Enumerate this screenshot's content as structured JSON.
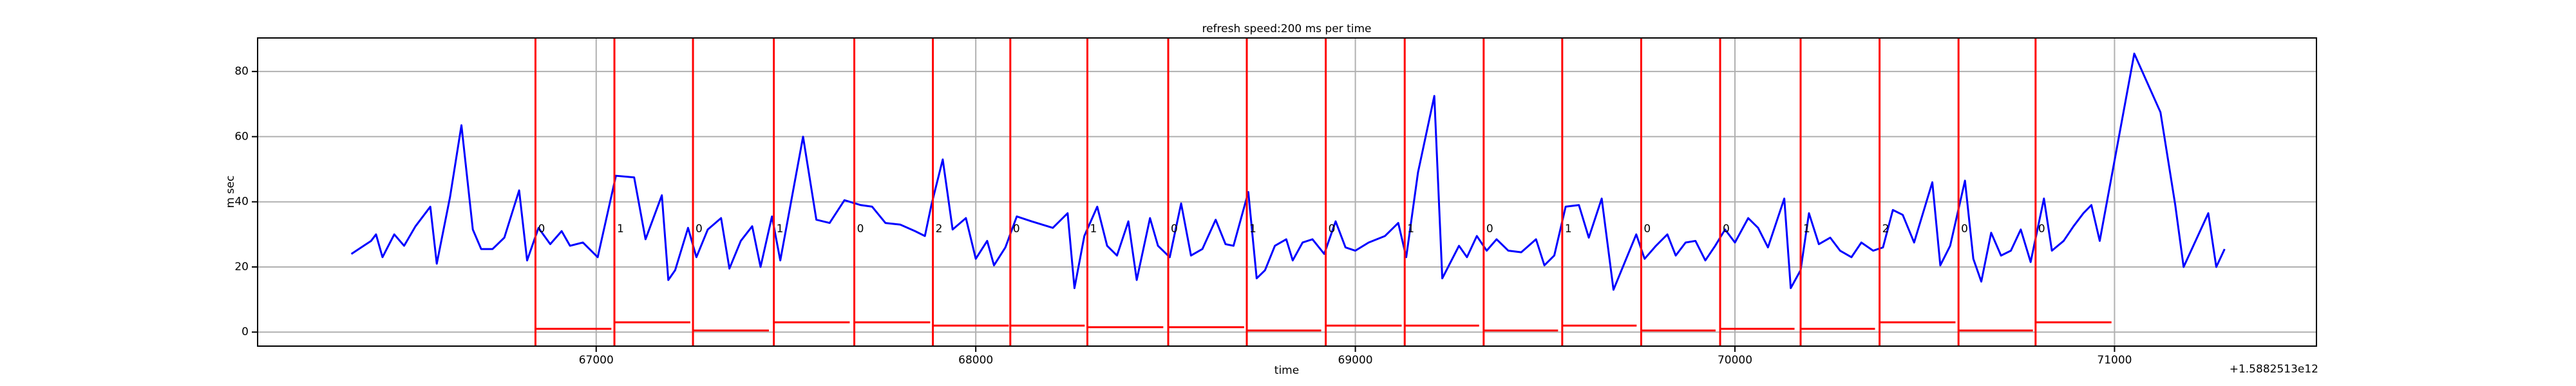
{
  "chart_data": {
    "type": "line",
    "title": "refresh speed:200 ms per time",
    "xlabel": "time",
    "ylabel": "m sec",
    "x_offset_label": "+1.5882513e12",
    "xlim": [
      66108,
      71532
    ],
    "ylim": [
      -4.3,
      90.3
    ],
    "xticks": [
      67000,
      68000,
      69000,
      70000,
      71000
    ],
    "yticks": [
      0,
      20,
      40,
      60,
      80
    ],
    "grid": true,
    "series": [
      {
        "color": "#0000ff",
        "x": [
          66355,
          66407,
          66420,
          66437,
          66468,
          66494,
          66524,
          66563,
          66580,
          66615,
          66645,
          66675,
          66697,
          66727,
          66758,
          66797,
          66818,
          66848,
          66879,
          66909,
          66931,
          66965,
          67004,
          67052,
          67100,
          67130,
          67173,
          67190,
          67208,
          67242,
          67264,
          67294,
          67329,
          67351,
          67381,
          67411,
          67433,
          67463,
          67485,
          67545,
          67580,
          67615,
          67654,
          67697,
          67727,
          67762,
          67801,
          67840,
          67866,
          67883,
          67913,
          67939,
          67974,
          68000,
          68030,
          68048,
          68078,
          68108,
          68147,
          68203,
          68242,
          68260,
          68286,
          68320,
          68346,
          68372,
          68402,
          68424,
          68459,
          68480,
          68511,
          68541,
          68567,
          68597,
          68632,
          68658,
          68679,
          68718,
          68740,
          68762,
          68788,
          68818,
          68835,
          68861,
          68887,
          68918,
          68948,
          68974,
          69000,
          69035,
          69078,
          69113,
          69134,
          69165,
          69208,
          69229,
          69273,
          69294,
          69320,
          69346,
          69372,
          69403,
          69437,
          69476,
          69498,
          69524,
          69554,
          69589,
          69615,
          69649,
          69680,
          69710,
          69740,
          69762,
          69792,
          69822,
          69844,
          69870,
          69896,
          69922,
          69948,
          69974,
          70000,
          70035,
          70061,
          70087,
          70130,
          70147,
          70173,
          70195,
          70221,
          70251,
          70277,
          70307,
          70333,
          70364,
          70390,
          70416,
          70442,
          70472,
          70520,
          70541,
          70567,
          70606,
          70628,
          70649,
          70675,
          70701,
          70727,
          70753,
          70779,
          70814,
          70835,
          70866,
          70892,
          70918,
          70939,
          70961,
          71052,
          71121,
          71160,
          71182,
          71247,
          71268,
          71290
        ],
        "values": [
          24,
          28,
          30,
          23,
          30,
          26.5,
          32.5,
          38.5,
          21,
          41.5,
          63.5,
          31.5,
          25.5,
          25.5,
          29,
          43.5,
          22,
          32,
          27,
          31,
          26.5,
          27.5,
          23,
          48,
          47.5,
          28.5,
          42,
          16,
          19,
          32,
          23,
          31.5,
          35,
          19.5,
          28,
          32.5,
          20,
          35.5,
          22,
          60,
          34.5,
          33.5,
          40.5,
          39,
          38.5,
          33.5,
          33,
          31,
          29.5,
          39,
          53,
          31.5,
          35,
          22.5,
          28,
          20.5,
          26,
          35.5,
          34,
          32,
          36.5,
          13.5,
          29.5,
          38.5,
          26.5,
          23.5,
          34,
          16,
          35,
          26.5,
          23,
          39.5,
          23.5,
          25.5,
          34.5,
          27,
          26.5,
          43,
          16.5,
          19,
          26.5,
          28.5,
          22,
          27.5,
          28.5,
          24,
          34,
          26,
          25,
          27.5,
          29.5,
          33.5,
          23,
          49,
          72.5,
          16.5,
          26.5,
          23,
          29.5,
          25,
          28.5,
          25,
          24.5,
          28.5,
          20.5,
          23.5,
          38.5,
          39,
          29,
          41,
          13,
          21.5,
          30,
          22.5,
          26.5,
          30,
          23.5,
          27.5,
          28,
          22,
          26.5,
          31.5,
          27.5,
          35,
          32,
          26,
          41,
          13.5,
          19,
          36.5,
          27,
          29,
          25,
          23,
          27.5,
          25,
          26,
          37.5,
          36,
          27.5,
          46,
          20.5,
          26.5,
          46.5,
          22.5,
          15.5,
          30.5,
          23.5,
          25,
          31.5,
          21.5,
          41,
          25,
          28,
          32.5,
          36.5,
          39,
          28,
          85.5,
          67.5,
          39,
          20,
          36.5,
          20,
          25.5
        ]
      }
    ],
    "events": {
      "color": "#ff0000",
      "x": [
        66840,
        67048,
        67255,
        67468,
        67680,
        67887,
        68091,
        68294,
        68507,
        68714,
        68922,
        69130,
        69338,
        69545,
        69753,
        69961,
        70173,
        70381,
        70589,
        70792
      ],
      "labels": [
        "0",
        "1",
        "0",
        "1",
        "0",
        "2",
        "0",
        "1",
        "0",
        "1",
        "0",
        "1",
        "0",
        "1",
        "0",
        "0",
        "1",
        "2",
        "0",
        "0"
      ]
    },
    "levels": {
      "color": "#ff0000",
      "start": [
        66840,
        67048,
        67255,
        67468,
        67680,
        67887,
        68091,
        68294,
        68507,
        68714,
        68922,
        69130,
        69338,
        69545,
        69753,
        69961,
        70173,
        70381,
        70589,
        70792
      ],
      "end": [
        67040,
        67248,
        67455,
        67668,
        67880,
        68087,
        68287,
        68494,
        68707,
        68910,
        69122,
        69326,
        69534,
        69741,
        69949,
        70157,
        70369,
        70581,
        70785,
        70992
      ],
      "values": [
        1,
        3,
        0.5,
        3,
        3,
        2,
        2,
        1.5,
        1.5,
        0.5,
        2,
        2,
        0.5,
        2,
        0.5,
        1,
        1,
        3,
        0.5,
        3
      ]
    }
  }
}
